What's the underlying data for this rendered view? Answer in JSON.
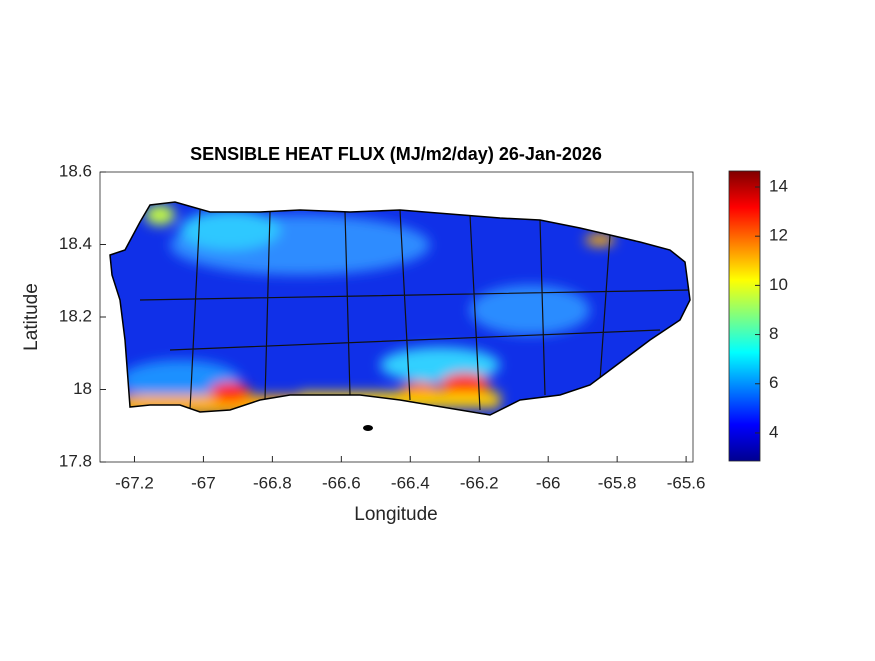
{
  "chart_data": {
    "type": "map",
    "title": "SENSIBLE HEAT FLUX (MJ/m2/day) 26-Jan-2026",
    "x_label": "Longitude",
    "y_label": "Latitude",
    "xlim": [
      -67.3,
      -65.58
    ],
    "xticks": [
      -67.2,
      -67,
      -66.8,
      -66.6,
      -66.4,
      -66.2,
      -66,
      -65.8,
      -65.6
    ],
    "ylim": [
      17.8,
      18.6
    ],
    "yticks": [
      17.8,
      18,
      18.2,
      18.4,
      18.6
    ],
    "colorbar": {
      "lim": [
        2.86,
        14.65
      ],
      "ticks": [
        4,
        6,
        8,
        10,
        12,
        14
      ],
      "colormap": "jet"
    }
  }
}
